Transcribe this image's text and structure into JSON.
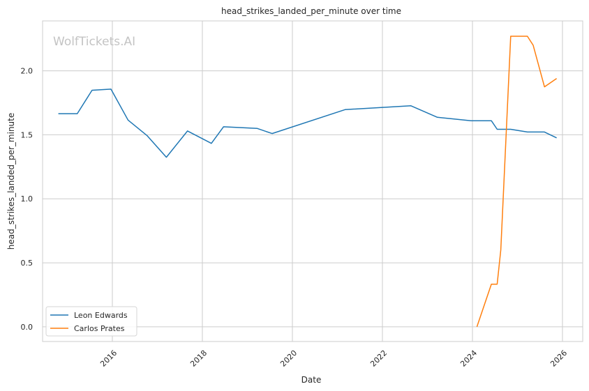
{
  "chart_data": {
    "type": "line",
    "title": "head_strikes_landed_per_minute over time",
    "xlabel": "Date",
    "ylabel": "head_strikes_landed_per_minute",
    "watermark": "WolfTickets.AI",
    "xlim": [
      2014.45,
      2026.45
    ],
    "ylim": [
      -0.115,
      2.39
    ],
    "x_ticks": [
      2016,
      2018,
      2020,
      2022,
      2024,
      2026
    ],
    "y_ticks": [
      0.0,
      0.5,
      1.0,
      1.5,
      2.0
    ],
    "y_tick_labels": [
      "0.0",
      "0.5",
      "1.0",
      "1.5",
      "2.0"
    ],
    "grid": true,
    "legend_position": "lower-left",
    "series": [
      {
        "name": "Leon Edwards",
        "color": "#1f77b4",
        "x": [
          2014.8,
          2015.22,
          2015.55,
          2015.97,
          2016.35,
          2016.77,
          2017.2,
          2017.67,
          2018.2,
          2018.47,
          2019.22,
          2019.55,
          2021.17,
          2022.63,
          2023.22,
          2023.97,
          2024.42,
          2024.55,
          2024.85,
          2025.22,
          2025.6,
          2025.87
        ],
        "y": [
          1.665,
          1.665,
          1.848,
          1.857,
          1.615,
          1.495,
          1.325,
          1.53,
          1.433,
          1.563,
          1.55,
          1.51,
          1.697,
          1.727,
          1.637,
          1.61,
          1.61,
          1.543,
          1.543,
          1.522,
          1.522,
          1.476
        ]
      },
      {
        "name": "Carlos Prates",
        "color": "#ff7f0e",
        "x": [
          2024.1,
          2024.42,
          2024.55,
          2024.63,
          2024.85,
          2025.05,
          2025.22,
          2025.35,
          2025.6,
          2025.87
        ],
        "y": [
          0.0,
          0.333,
          0.333,
          0.6,
          2.27,
          2.27,
          2.27,
          2.2,
          1.875,
          1.94
        ]
      }
    ]
  }
}
